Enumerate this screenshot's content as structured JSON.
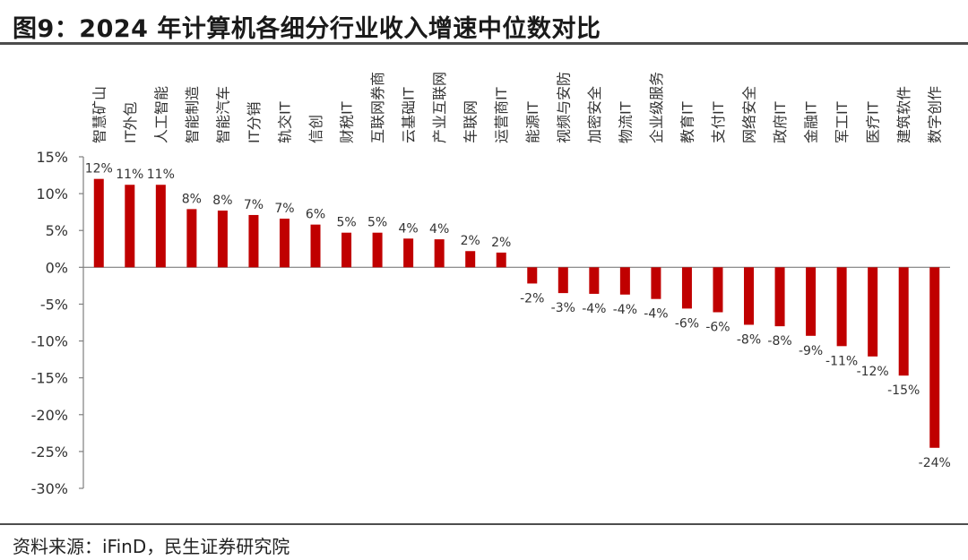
{
  "header": {
    "title": "图9：2024 年计算机各细分行业收入增速中位数对比"
  },
  "footer": {
    "source": "资料来源：iFinD，民生证券研究院"
  },
  "colors": {
    "bar": "#C00000",
    "axis": "#7f7f7f",
    "rule": "#4d4d4d",
    "text": "#333333"
  },
  "chart_data": {
    "type": "bar",
    "title": "",
    "xlabel": "",
    "ylabel": "",
    "ylim": [
      -30,
      15
    ],
    "yticks": [
      15,
      10,
      5,
      0,
      -5,
      -10,
      -15,
      -20,
      -25,
      -30
    ],
    "ytick_labels": [
      "15%",
      "10%",
      "5%",
      "0%",
      "-5%",
      "-10%",
      "-15%",
      "-20%",
      "-25%",
      "-30%"
    ],
    "grid": false,
    "categories": [
      "智慧矿山",
      "IT外包",
      "人工智能",
      "智能制造",
      "智能汽车",
      "IT分销",
      "轨交IT",
      "信创",
      "财税IT",
      "互联网券商",
      "云基础IT",
      "产业互联网",
      "车联网",
      "运营商IT",
      "能源IT",
      "视频与安防",
      "加密安全",
      "物流IT",
      "企业级服务",
      "教育IT",
      "支付IT",
      "网络安全",
      "政府IT",
      "金融IT",
      "军工IT",
      "医疗IT",
      "建筑软件",
      "数字创作"
    ],
    "values": [
      12,
      11.2,
      11.2,
      7.9,
      7.7,
      7.1,
      6.6,
      5.8,
      4.7,
      4.7,
      3.9,
      3.8,
      2.2,
      2.0,
      -2.2,
      -3.5,
      -3.6,
      -3.7,
      -4.3,
      -5.6,
      -6.1,
      -7.8,
      -8.0,
      -9.3,
      -10.7,
      -12.1,
      -14.7,
      -24.5
    ],
    "data_labels": [
      "12%",
      "11%",
      "11%",
      "8%",
      "8%",
      "7%",
      "7%",
      "6%",
      "5%",
      "5%",
      "4%",
      "4%",
      "2%",
      "2%",
      "-2%",
      "-3%",
      "-4%",
      "-4%",
      "-4%",
      "-6%",
      "-6%",
      "-8%",
      "-8%",
      "-9%",
      "-11%",
      "-12%",
      "-15%",
      "-24%"
    ]
  }
}
